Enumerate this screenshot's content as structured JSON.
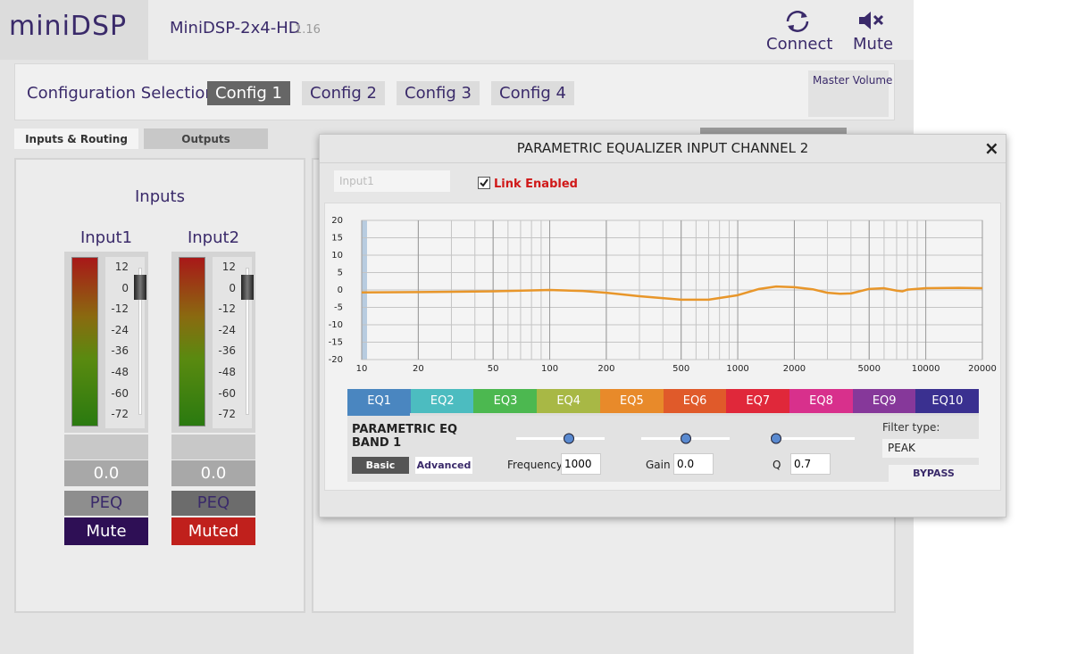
{
  "header": {
    "logo": "miniDSP",
    "device": "MiniDSP-2x4-HD",
    "version": "1.16",
    "connect": "Connect",
    "mute": "Mute"
  },
  "config": {
    "label": "Configuration Selection:",
    "options": [
      "Config 1",
      "Config 2",
      "Config 3",
      "Config 4"
    ],
    "master_volume": "Master Volume"
  },
  "tabs": [
    "Inputs & Routing",
    "Outputs"
  ],
  "inputs": {
    "title": "Inputs",
    "meter_scale": [
      "12",
      "0",
      "-12",
      "-24",
      "-36",
      "-48",
      "-60",
      "-72"
    ],
    "channels": [
      {
        "name": "Input1",
        "level": "0.0",
        "peq": "PEQ",
        "mute": "Mute"
      },
      {
        "name": "Input2",
        "level": "0.0",
        "peq": "PEQ",
        "mute": "Muted"
      }
    ]
  },
  "dialog": {
    "title": "PARAMETRIC EQUALIZER INPUT CHANNEL 2",
    "close": "×",
    "input_name": "Input1",
    "link": "Link Enabled",
    "eq_tabs": [
      {
        "label": "EQ1",
        "color": "#4a86c0"
      },
      {
        "label": "EQ2",
        "color": "#4cbcc0"
      },
      {
        "label": "EQ3",
        "color": "#4cb850"
      },
      {
        "label": "EQ4",
        "color": "#a8b845"
      },
      {
        "label": "EQ5",
        "color": "#e88a2a"
      },
      {
        "label": "EQ6",
        "color": "#e05a2a"
      },
      {
        "label": "EQ7",
        "color": "#e0283a"
      },
      {
        "label": "EQ8",
        "color": "#d8308c"
      },
      {
        "label": "EQ9",
        "color": "#86389a"
      },
      {
        "label": "EQ10",
        "color": "#3a3090"
      }
    ],
    "band": {
      "title": "PARAMETRIC EQ BAND 1",
      "basic": "Basic",
      "advanced": "Advanced",
      "frequency_label": "Frequency",
      "frequency": "1000",
      "gain_label": "Gain",
      "gain": "0.0",
      "q_label": "Q",
      "q": "0.7",
      "filter_type_label": "Filter type:",
      "filter_type": "PEAK",
      "bypass": "BYPASS"
    }
  },
  "chart_data": {
    "type": "line",
    "xlog": true,
    "grid": true,
    "color": "#e8962a",
    "x": [
      10,
      20,
      50,
      100,
      150,
      200,
      300,
      500,
      700,
      1000,
      1300,
      1600,
      2000,
      2500,
      3000,
      3500,
      4000,
      5000,
      6000,
      7000,
      7500,
      8000,
      10000,
      15000,
      20000
    ],
    "values": [
      -0.7,
      -0.6,
      -0.4,
      0,
      -0.3,
      -0.8,
      -1.8,
      -2.8,
      -2.8,
      -1.5,
      0.3,
      1,
      0.8,
      0.2,
      -0.8,
      -1.1,
      -1,
      0.3,
      0.5,
      -0.2,
      -0.4,
      0.1,
      0.5,
      0.6,
      0.5
    ],
    "xlim": [
      10,
      20000
    ],
    "xticks": [
      10,
      20,
      50,
      100,
      200,
      500,
      1000,
      2000,
      5000,
      10000,
      20000
    ],
    "ylim": [
      -20,
      20
    ],
    "yticks": [
      20,
      15,
      10,
      5,
      0,
      -5,
      -10,
      -15,
      -20
    ]
  }
}
